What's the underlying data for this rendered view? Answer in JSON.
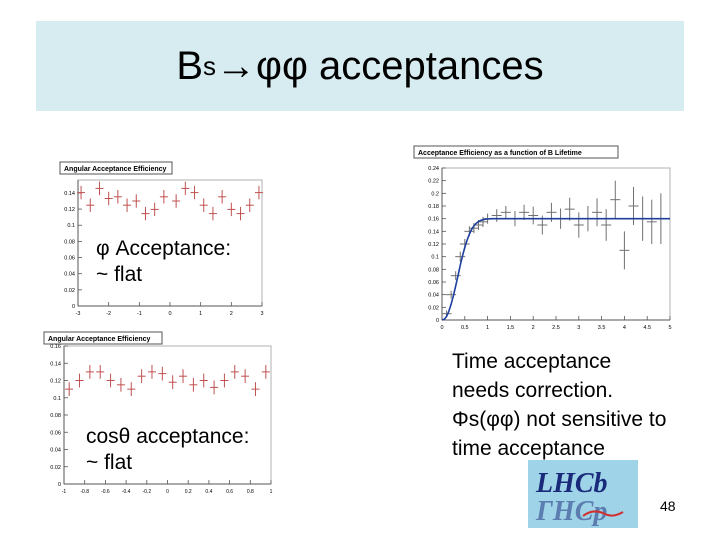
{
  "slide": {
    "title_main": "B",
    "title_sub": "s",
    "title_rest": "→φφ acceptances",
    "page_number": "48",
    "caption_phi_line1": "φ Acceptance:",
    "caption_phi_line2": "~ flat",
    "caption_cos_line1": "cosθ acceptance:",
    "caption_cos_line2": "~ flat",
    "caption_time_line1": "Time acceptance",
    "caption_time_line2": "needs correction.",
    "caption_time_line3": "Φs(φφ) not sensitive to",
    "caption_time_line4": "time acceptance",
    "logo_text_top": "LHCb",
    "logo_text_bottom": "ГHCp"
  },
  "chart_data": [
    {
      "type": "scatter",
      "title": "Angular Acceptance Efficiency",
      "x": [
        -2.9,
        -2.6,
        -2.3,
        -2.0,
        -1.7,
        -1.4,
        -1.1,
        -0.8,
        -0.5,
        -0.2,
        0.2,
        0.5,
        0.8,
        1.1,
        1.4,
        1.7,
        2.0,
        2.3,
        2.6,
        2.9
      ],
      "y": [
        0.135,
        0.12,
        0.14,
        0.128,
        0.13,
        0.12,
        0.125,
        0.11,
        0.115,
        0.13,
        0.125,
        0.14,
        0.135,
        0.12,
        0.11,
        0.13,
        0.115,
        0.11,
        0.12,
        0.135
      ],
      "yerr": 0.008,
      "xlabel": "",
      "ylabel": "",
      "xlim": [
        -3,
        3
      ],
      "ylim": [
        0,
        0.15
      ],
      "xticks": [
        "-3",
        "-2",
        "-1",
        "0",
        "1",
        "2",
        "3"
      ],
      "yticks": [
        "0",
        "0.02",
        "0.04",
        "0.06",
        "0.08",
        "0.1",
        "0.12",
        "0.14"
      ],
      "color": "#c05050"
    },
    {
      "type": "scatter",
      "title": "Angular Acceptance Efficiency",
      "x": [
        -0.95,
        -0.85,
        -0.75,
        -0.65,
        -0.55,
        -0.45,
        -0.35,
        -0.25,
        -0.15,
        -0.05,
        0.05,
        0.15,
        0.25,
        0.35,
        0.45,
        0.55,
        0.65,
        0.75,
        0.85,
        0.95
      ],
      "y": [
        0.11,
        0.12,
        0.13,
        0.13,
        0.12,
        0.115,
        0.11,
        0.125,
        0.13,
        0.128,
        0.118,
        0.125,
        0.115,
        0.12,
        0.112,
        0.12,
        0.13,
        0.125,
        0.11,
        0.13
      ],
      "yerr": 0.008,
      "xlabel": "",
      "ylabel": "",
      "xlim": [
        -1,
        1
      ],
      "ylim": [
        0,
        0.16
      ],
      "xticks": [
        "-1",
        "-0.8",
        "-0.6",
        "-0.4",
        "-0.2",
        "0",
        "0.2",
        "0.4",
        "0.6",
        "0.8",
        "1"
      ],
      "yticks": [
        "0",
        "0.02",
        "0.04",
        "0.06",
        "0.08",
        "0.1",
        "0.12",
        "0.14",
        "0.16"
      ],
      "color": "#c05050"
    },
    {
      "type": "scatter",
      "title": "Acceptance Efficiency as a function of B Lifetime",
      "x": [
        0.1,
        0.2,
        0.3,
        0.4,
        0.5,
        0.6,
        0.7,
        0.8,
        0.9,
        1.0,
        1.2,
        1.4,
        1.6,
        1.8,
        2.0,
        2.2,
        2.4,
        2.6,
        2.8,
        3.0,
        3.2,
        3.4,
        3.6,
        3.8,
        4.0,
        4.2,
        4.4,
        4.6,
        4.8
      ],
      "y": [
        0.01,
        0.04,
        0.07,
        0.1,
        0.12,
        0.14,
        0.145,
        0.15,
        0.155,
        0.16,
        0.165,
        0.17,
        0.16,
        0.17,
        0.165,
        0.15,
        0.17,
        0.16,
        0.175,
        0.15,
        0.16,
        0.17,
        0.15,
        0.19,
        0.11,
        0.18,
        0.16,
        0.155,
        0.16
      ],
      "yerr": [
        0.005,
        0.006,
        0.007,
        0.008,
        0.008,
        0.008,
        0.008,
        0.008,
        0.008,
        0.008,
        0.01,
        0.01,
        0.012,
        0.012,
        0.014,
        0.015,
        0.015,
        0.016,
        0.018,
        0.02,
        0.02,
        0.022,
        0.025,
        0.03,
        0.03,
        0.03,
        0.035,
        0.035,
        0.04
      ],
      "fit_plateau": 0.16,
      "xlim": [
        0,
        5
      ],
      "ylim": [
        0,
        0.24
      ],
      "xticks": [
        "0",
        "0.5",
        "1",
        "1.5",
        "2",
        "2.5",
        "3",
        "3.5",
        "4",
        "4.5",
        "5"
      ],
      "yticks": [
        "0",
        "0.02",
        "0.04",
        "0.06",
        "0.08",
        "0.1",
        "0.12",
        "0.14",
        "0.16",
        "0.18",
        "0.2",
        "0.22",
        "0.24"
      ],
      "color": "#707070",
      "fit_color": "#1f3f9f"
    }
  ]
}
